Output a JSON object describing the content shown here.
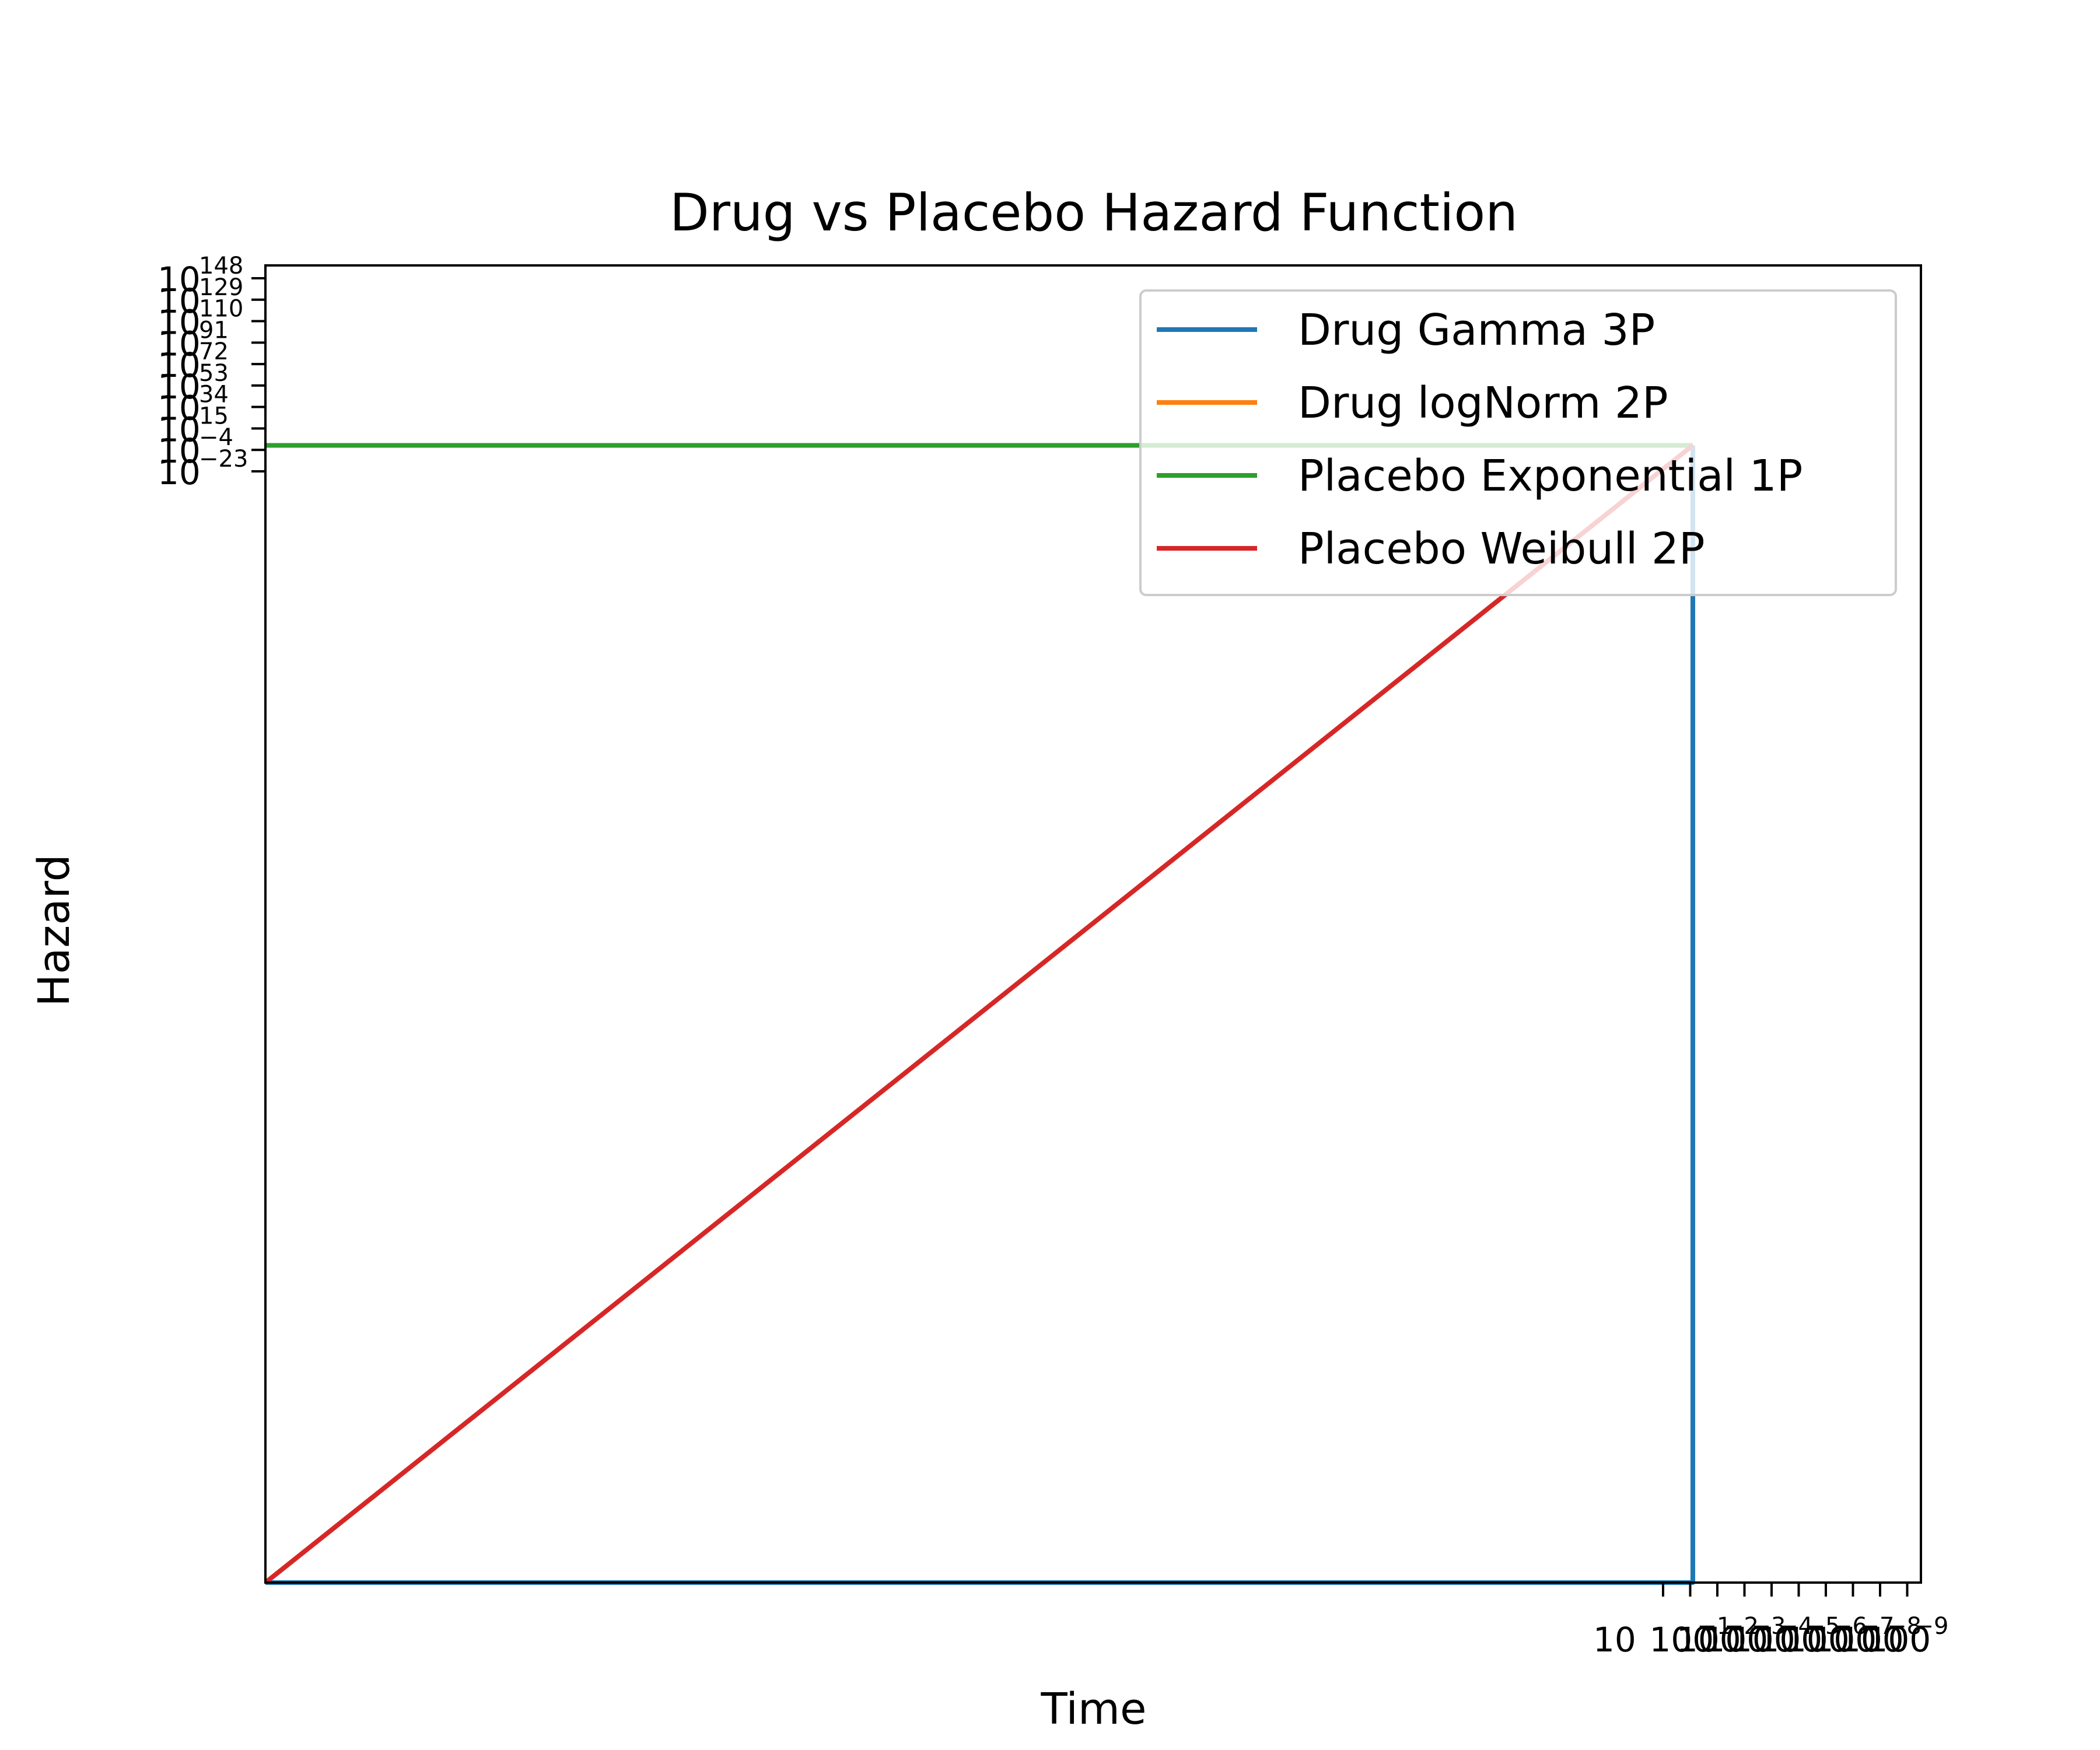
{
  "chart_data": {
    "type": "line",
    "title": "Drug vs Placebo Hazard Function",
    "xlabel": "Time",
    "ylabel": "Hazard",
    "xscale": "log",
    "yscale": "log",
    "grid": false,
    "legend_position": "top-right",
    "x_ticks": [
      {
        "value": 10,
        "base": "10",
        "exp": ""
      },
      {
        "value": 100,
        "base": "100",
        "exp": "1"
      },
      {
        "value": 1000,
        "base": "100",
        "exp": "2"
      },
      {
        "value": 10000,
        "base": "100",
        "exp": "3"
      },
      {
        "value": 100000,
        "base": "100",
        "exp": "4"
      },
      {
        "value": 1000000,
        "base": "100",
        "exp": "5"
      },
      {
        "value": 10000000,
        "base": "100",
        "exp": "6"
      },
      {
        "value": 100000000,
        "base": "100",
        "exp": "7"
      },
      {
        "value": 1000000000,
        "base": "100",
        "exp": "8"
      },
      {
        "value": 10000000000,
        "base": "100",
        "exp": "9"
      }
    ],
    "y_ticks": [
      {
        "exp": 148,
        "base": "10",
        "label": "148"
      },
      {
        "exp": 129,
        "base": "10",
        "label": "129"
      },
      {
        "exp": 110,
        "base": "10",
        "label": "110"
      },
      {
        "exp": 91,
        "base": "10",
        "label": "91"
      },
      {
        "exp": 72,
        "base": "10",
        "label": "72"
      },
      {
        "exp": 53,
        "base": "10",
        "label": "53"
      },
      {
        "exp": 34,
        "base": "10",
        "label": "34"
      },
      {
        "exp": 15,
        "base": "10",
        "label": "15"
      },
      {
        "exp": -4,
        "base": "10",
        "label": "−4"
      },
      {
        "exp": -23,
        "base": "10",
        "label": "−23"
      }
    ],
    "series": [
      {
        "name": "Drug Gamma 3P",
        "color": "#1f77b4",
        "points": [
          [
            1e-300,
            1e-300
          ],
          [
            0.0001,
            1e-300
          ],
          [
            0.0001,
            0.9
          ],
          [
            0.0001,
            1
          ]
        ]
      },
      {
        "name": "Drug logNorm 2P",
        "color": "#ff7f0e",
        "points": [
          [
            1e-300,
            1e-300
          ],
          [
            0.0001,
            1
          ]
        ]
      },
      {
        "name": "Placebo Exponential 1P",
        "color": "#2ca02c",
        "points": [
          [
            1e-300,
            1
          ],
          [
            0.0001,
            1
          ]
        ]
      },
      {
        "name": "Placebo Weibull 2P",
        "color": "#d62728",
        "points": [
          [
            1e-300,
            1e-300
          ],
          [
            0.0001,
            1
          ]
        ]
      }
    ]
  }
}
